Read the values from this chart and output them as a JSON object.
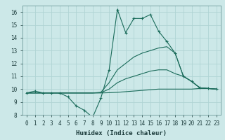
{
  "xlabel": "Humidex (Indice chaleur)",
  "xlim": [
    -0.5,
    23.5
  ],
  "ylim": [
    8,
    16.5
  ],
  "xticks": [
    0,
    1,
    2,
    3,
    4,
    5,
    6,
    7,
    8,
    9,
    10,
    11,
    12,
    13,
    14,
    15,
    16,
    17,
    18,
    19,
    20,
    21,
    22,
    23
  ],
  "yticks": [
    8,
    9,
    10,
    11,
    12,
    13,
    14,
    15,
    16
  ],
  "bg_color": "#cce8e8",
  "line_color": "#1a6b5a",
  "grid_color": "#b0d4d4",
  "lines": [
    {
      "x": [
        0,
        1,
        2,
        3,
        4,
        5,
        6,
        7,
        8,
        9,
        10,
        11,
        12,
        13,
        14,
        15,
        16,
        17,
        18,
        19,
        20,
        21,
        22,
        23
      ],
      "y": [
        9.7,
        9.85,
        9.7,
        9.7,
        9.7,
        9.4,
        8.7,
        8.35,
        7.8,
        9.3,
        11.5,
        16.2,
        14.4,
        15.5,
        15.5,
        15.8,
        14.5,
        13.7,
        12.8,
        11.0,
        10.6,
        10.1,
        10.05,
        10.0
      ],
      "marker": true
    },
    {
      "x": [
        0,
        1,
        2,
        3,
        4,
        5,
        6,
        7,
        8,
        9,
        10,
        11,
        12,
        13,
        14,
        15,
        16,
        17,
        18,
        19,
        20,
        21,
        22,
        23
      ],
      "y": [
        9.7,
        9.7,
        9.7,
        9.7,
        9.7,
        9.7,
        9.7,
        9.7,
        9.7,
        9.75,
        10.5,
        11.5,
        12.0,
        12.5,
        12.8,
        13.0,
        13.2,
        13.3,
        12.8,
        11.0,
        10.6,
        10.1,
        10.05,
        10.0
      ],
      "marker": false
    },
    {
      "x": [
        0,
        1,
        2,
        3,
        4,
        5,
        6,
        7,
        8,
        9,
        10,
        11,
        12,
        13,
        14,
        15,
        16,
        17,
        18,
        19,
        20,
        21,
        22,
        23
      ],
      "y": [
        9.7,
        9.7,
        9.7,
        9.7,
        9.7,
        9.7,
        9.7,
        9.7,
        9.7,
        9.72,
        10.0,
        10.5,
        10.8,
        11.0,
        11.2,
        11.4,
        11.5,
        11.5,
        11.2,
        11.0,
        10.6,
        10.1,
        10.05,
        10.0
      ],
      "marker": false
    },
    {
      "x": [
        0,
        1,
        2,
        3,
        4,
        5,
        6,
        7,
        8,
        9,
        10,
        11,
        12,
        13,
        14,
        15,
        16,
        17,
        18,
        19,
        20,
        21,
        22,
        23
      ],
      "y": [
        9.7,
        9.7,
        9.7,
        9.7,
        9.7,
        9.7,
        9.7,
        9.7,
        9.7,
        9.7,
        9.72,
        9.75,
        9.8,
        9.85,
        9.9,
        9.95,
        10.0,
        10.0,
        10.0,
        10.0,
        10.0,
        10.05,
        10.05,
        10.0
      ],
      "marker": false
    }
  ]
}
